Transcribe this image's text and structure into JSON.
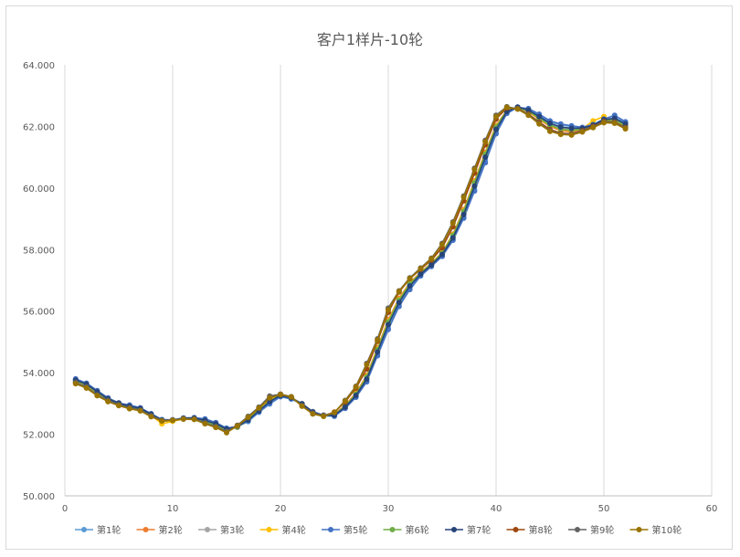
{
  "chart_data": {
    "type": "line",
    "title": "客户1样片-10轮",
    "xlabel": "",
    "ylabel": "",
    "xlim": [
      0,
      60
    ],
    "ylim": [
      50.0,
      64.0
    ],
    "x_ticks": [
      "0",
      "10",
      "20",
      "30",
      "40",
      "50",
      "60"
    ],
    "y_ticks": [
      "50.000",
      "52.000",
      "54.000",
      "56.000",
      "58.000",
      "60.000",
      "62.000",
      "64.000"
    ],
    "grid": "vertical",
    "legend_position": "bottom",
    "x": [
      1,
      2,
      3,
      4,
      5,
      6,
      7,
      8,
      9,
      10,
      11,
      12,
      13,
      14,
      15,
      16,
      17,
      18,
      19,
      20,
      21,
      22,
      23,
      24,
      25,
      26,
      27,
      28,
      29,
      30,
      31,
      32,
      33,
      34,
      35,
      36,
      37,
      38,
      39,
      40,
      41,
      42,
      43,
      44,
      45,
      46,
      47,
      48,
      49,
      50,
      51,
      52
    ],
    "series": [
      {
        "name": "第1轮",
        "color": "#5B9BD5",
        "values": [
          53.75,
          53.62,
          53.38,
          53.16,
          53.02,
          52.92,
          52.84,
          52.66,
          52.48,
          52.46,
          52.52,
          52.52,
          52.43,
          52.32,
          52.16,
          52.24,
          52.41,
          52.71,
          52.98,
          53.22,
          53.14,
          52.98,
          52.72,
          52.6,
          52.58,
          52.85,
          53.21,
          53.72,
          54.6,
          55.45,
          56.2,
          56.75,
          57.18,
          57.48,
          57.78,
          58.32,
          59.05,
          59.95,
          60.9,
          61.82,
          62.46,
          62.63,
          62.55,
          62.36,
          62.15,
          62.05,
          62.0,
          61.95,
          62.04,
          62.22,
          62.28,
          62.12
        ]
      },
      {
        "name": "第2轮",
        "color": "#ED7D31",
        "values": [
          53.7,
          53.57,
          53.32,
          53.12,
          52.98,
          52.87,
          52.8,
          52.62,
          52.45,
          52.46,
          52.5,
          52.5,
          52.38,
          52.27,
          52.12,
          52.26,
          52.52,
          52.81,
          53.13,
          53.3,
          53.2,
          52.96,
          52.69,
          52.62,
          52.66,
          52.94,
          53.34,
          53.91,
          54.81,
          55.72,
          56.42,
          56.92,
          57.26,
          57.56,
          57.91,
          58.5,
          59.3,
          60.23,
          61.16,
          62.03,
          62.53,
          62.6,
          62.48,
          62.22,
          62.0,
          61.86,
          61.82,
          61.88,
          62.02,
          62.2,
          62.18,
          62.0
        ]
      },
      {
        "name": "第3轮",
        "color": "#A5A5A5",
        "values": [
          53.78,
          53.64,
          53.4,
          53.18,
          53.02,
          52.94,
          52.83,
          52.66,
          52.42,
          52.43,
          52.5,
          52.5,
          52.44,
          52.31,
          52.14,
          52.22,
          52.45,
          52.76,
          53.05,
          53.24,
          53.18,
          53.0,
          52.74,
          52.61,
          52.62,
          52.88,
          53.28,
          53.82,
          54.7,
          55.6,
          56.32,
          56.85,
          57.22,
          57.52,
          57.85,
          58.42,
          59.18,
          60.1,
          61.05,
          61.95,
          62.5,
          62.62,
          62.52,
          62.3,
          62.08,
          61.95,
          61.9,
          61.92,
          62.05,
          62.22,
          62.24,
          62.05
        ]
      },
      {
        "name": "第4轮",
        "color": "#FFC000",
        "values": [
          53.72,
          53.58,
          53.33,
          53.13,
          52.99,
          52.88,
          52.82,
          52.62,
          52.34,
          52.42,
          52.5,
          52.51,
          52.4,
          52.29,
          52.13,
          52.25,
          52.49,
          52.79,
          53.1,
          53.28,
          53.2,
          52.98,
          52.7,
          52.6,
          52.64,
          52.92,
          53.31,
          53.88,
          54.78,
          55.68,
          56.38,
          56.9,
          57.24,
          57.55,
          57.9,
          58.48,
          59.27,
          60.2,
          61.12,
          62.0,
          62.52,
          62.61,
          62.49,
          62.24,
          62.03,
          61.9,
          61.86,
          61.92,
          62.18,
          62.32,
          62.16,
          61.98
        ]
      },
      {
        "name": "第5轮",
        "color": "#4472C4",
        "values": [
          53.8,
          53.66,
          53.42,
          53.18,
          53.01,
          52.95,
          52.86,
          52.67,
          52.47,
          52.47,
          52.53,
          52.54,
          52.5,
          52.38,
          52.2,
          52.25,
          52.44,
          52.73,
          53.0,
          53.22,
          53.16,
          52.98,
          52.73,
          52.62,
          52.6,
          52.84,
          53.2,
          53.7,
          54.55,
          55.4,
          56.15,
          56.7,
          57.14,
          57.45,
          57.78,
          58.3,
          59.02,
          59.9,
          60.82,
          61.76,
          62.42,
          62.62,
          62.58,
          62.4,
          62.18,
          62.08,
          62.02,
          61.97,
          62.06,
          62.24,
          62.36,
          62.15
        ]
      },
      {
        "name": "第6轮",
        "color": "#70AD47",
        "values": [
          53.74,
          53.6,
          53.36,
          53.14,
          53.0,
          52.9,
          52.82,
          52.63,
          52.44,
          52.45,
          52.51,
          52.52,
          52.42,
          52.3,
          52.14,
          52.24,
          52.48,
          52.78,
          53.08,
          53.27,
          53.19,
          52.98,
          52.71,
          52.61,
          52.64,
          52.91,
          53.3,
          53.86,
          54.75,
          55.65,
          56.36,
          56.88,
          57.23,
          57.54,
          57.88,
          58.46,
          59.24,
          60.17,
          61.1,
          61.98,
          62.51,
          62.61,
          62.5,
          62.26,
          62.04,
          61.91,
          61.87,
          61.9,
          61.98,
          62.2,
          62.2,
          62.02
        ]
      },
      {
        "name": "第7轮",
        "color": "#264478",
        "values": [
          53.76,
          53.63,
          53.38,
          53.15,
          53.01,
          52.91,
          52.84,
          52.65,
          52.46,
          52.46,
          52.52,
          52.53,
          52.45,
          52.34,
          52.17,
          52.26,
          52.46,
          52.76,
          53.06,
          53.26,
          53.18,
          52.99,
          52.72,
          52.61,
          52.62,
          52.88,
          53.26,
          53.79,
          54.67,
          55.56,
          56.28,
          56.82,
          57.2,
          57.5,
          57.84,
          58.38,
          59.14,
          60.06,
          61.0,
          61.9,
          62.48,
          62.63,
          62.53,
          62.32,
          62.1,
          61.98,
          61.94,
          61.94,
          62.04,
          62.22,
          62.26,
          62.08
        ]
      },
      {
        "name": "第8轮",
        "color": "#9E480E",
        "values": [
          53.66,
          53.52,
          53.26,
          53.08,
          52.95,
          52.84,
          52.77,
          52.58,
          52.44,
          52.46,
          52.5,
          52.49,
          52.36,
          52.24,
          52.08,
          52.28,
          52.56,
          52.86,
          53.2,
          53.3,
          53.22,
          52.92,
          52.67,
          52.6,
          52.72,
          53.05,
          53.5,
          54.12,
          55.02,
          55.96,
          56.62,
          57.05,
          57.36,
          57.66,
          58.06,
          58.74,
          59.58,
          60.48,
          61.4,
          62.24,
          62.6,
          62.58,
          62.4,
          62.14,
          61.9,
          61.78,
          61.76,
          61.86,
          62.0,
          62.16,
          62.14,
          61.96
        ]
      },
      {
        "name": "第9轮",
        "color": "#636363",
        "values": [
          53.68,
          53.54,
          53.28,
          53.1,
          52.96,
          52.86,
          52.78,
          52.6,
          52.45,
          52.47,
          52.51,
          52.5,
          52.37,
          52.25,
          52.09,
          52.29,
          52.58,
          52.88,
          53.24,
          53.3,
          53.22,
          52.93,
          52.68,
          52.61,
          52.7,
          53.1,
          53.56,
          54.3,
          55.1,
          56.1,
          56.66,
          57.08,
          57.4,
          57.72,
          58.2,
          58.9,
          59.74,
          60.64,
          61.55,
          62.36,
          62.64,
          62.57,
          62.38,
          62.1,
          61.86,
          61.76,
          61.74,
          61.84,
          61.98,
          62.14,
          62.12,
          61.94
        ]
      },
      {
        "name": "第10轮",
        "color": "#997300",
        "values": [
          53.64,
          53.5,
          53.25,
          53.06,
          52.93,
          52.83,
          52.76,
          52.57,
          52.43,
          52.45,
          52.49,
          52.48,
          52.34,
          52.22,
          52.05,
          52.27,
          52.55,
          52.85,
          53.18,
          53.29,
          53.21,
          52.91,
          52.66,
          52.58,
          52.71,
          53.08,
          53.54,
          54.26,
          55.06,
          56.04,
          56.64,
          57.06,
          57.38,
          57.7,
          58.16,
          58.86,
          59.7,
          60.6,
          61.5,
          62.32,
          62.62,
          62.56,
          62.36,
          62.08,
          61.84,
          61.74,
          61.72,
          61.82,
          61.96,
          62.12,
          62.1,
          61.92
        ]
      }
    ]
  }
}
